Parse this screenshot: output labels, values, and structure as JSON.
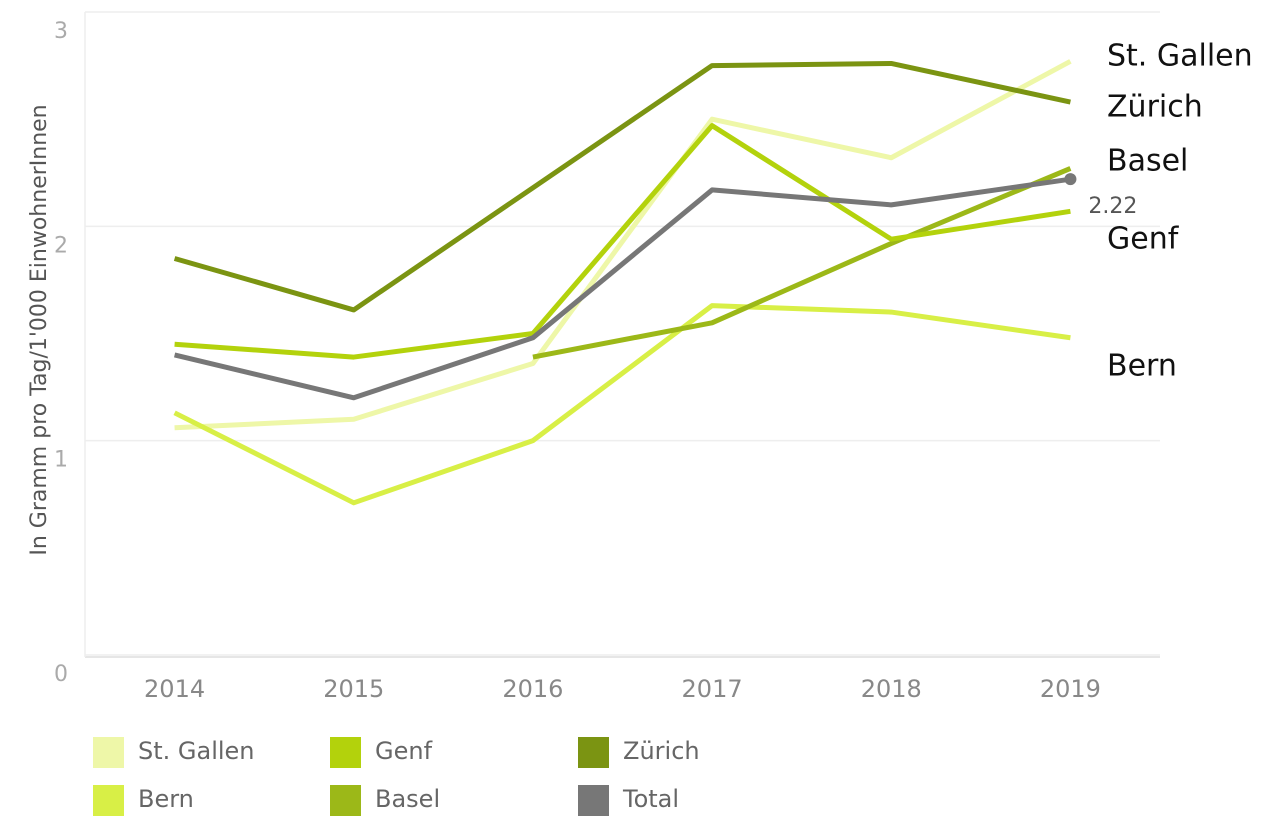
{
  "chart_data": {
    "type": "line",
    "y_label": "In Gramm pro Tag/1'000 EinwohnerInnen",
    "categories": [
      "2014",
      "2015",
      "2016",
      "2017",
      "2018",
      "2019"
    ],
    "series": [
      {
        "name": "St. Gallen",
        "color": "#eef7a8",
        "values": [
          1.06,
          1.1,
          1.36,
          2.5,
          2.32,
          2.77
        ]
      },
      {
        "name": "Bern",
        "color": "#d8ef46",
        "values": [
          1.13,
          0.71,
          1.0,
          1.63,
          1.6,
          1.48
        ]
      },
      {
        "name": "Genf",
        "color": "#b3d20c",
        "values": [
          1.45,
          1.39,
          1.5,
          2.47,
          1.94,
          2.07
        ]
      },
      {
        "name": "Basel",
        "color": "#9cb818",
        "values": [
          null,
          null,
          1.39,
          1.55,
          1.92,
          2.27
        ]
      },
      {
        "name": "Zürich",
        "color": "#7b9412",
        "values": [
          1.85,
          1.61,
          2.18,
          2.75,
          2.76,
          2.58
        ]
      },
      {
        "name": "Total",
        "color": "#777777",
        "values": [
          1.4,
          1.2,
          1.48,
          2.17,
          2.1,
          2.22
        ]
      }
    ],
    "ylim": [
      0,
      3
    ],
    "yticks": [
      0,
      1,
      2,
      3
    ],
    "grid": true
  }
}
